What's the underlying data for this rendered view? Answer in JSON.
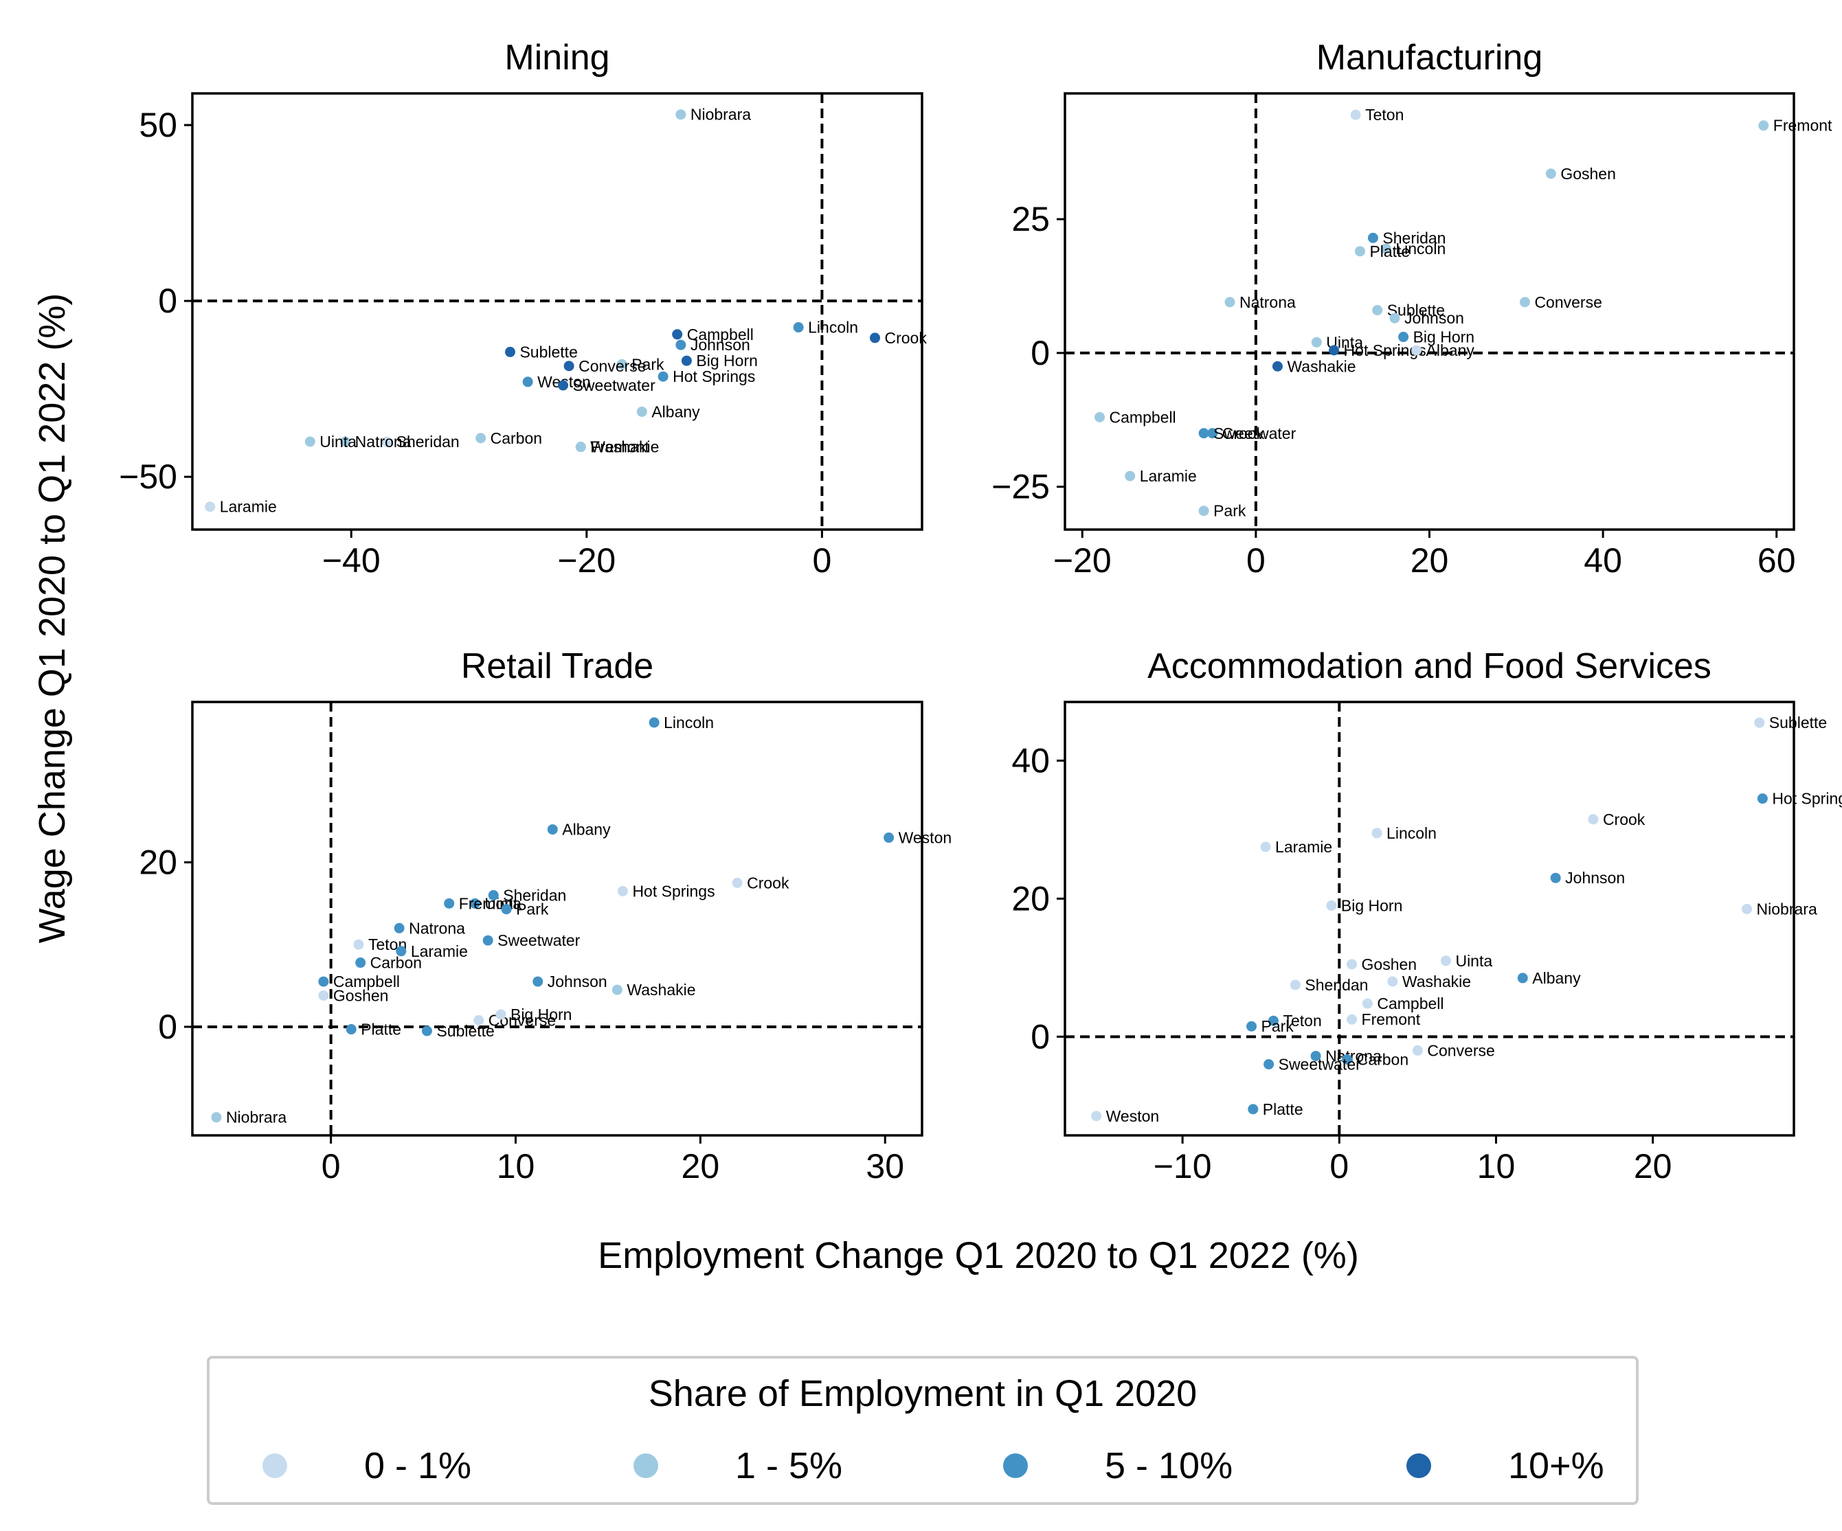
{
  "figure": {
    "ylabel": "Wage Change Q1 2020 to Q1 2022 (%)",
    "xlabel": "Employment Change Q1 2020 to Q1 2022 (%)"
  },
  "legend": {
    "title": "Share of Employment in Q1 2020",
    "placement": "bottom-center",
    "entries": [
      {
        "label": "0 - 1%",
        "color": "#c6dbef"
      },
      {
        "label": "1 - 5%",
        "color": "#9ecae1"
      },
      {
        "label": "5 - 10%",
        "color": "#4292c6"
      },
      {
        "label": "10+%",
        "color": "#1f63a8"
      }
    ]
  },
  "chart_data": [
    {
      "type": "scatter",
      "title": "Mining",
      "xlim": [
        -53.5,
        8.5
      ],
      "ylim": [
        -65,
        59
      ],
      "xticks": [
        -40,
        -20,
        0
      ],
      "yticks": [
        50,
        0,
        -50
      ],
      "reference_lines": {
        "x": 0,
        "y": 0
      },
      "points": [
        {
          "label": "Niobrara",
          "x": -12,
          "y": 53,
          "share": "1 - 5%"
        },
        {
          "label": "Lincoln",
          "x": -2,
          "y": -7.5,
          "share": "5 - 10%"
        },
        {
          "label": "Crook",
          "x": 4.5,
          "y": -10.5,
          "share": "10+%"
        },
        {
          "label": "Campbell",
          "x": -12.3,
          "y": -9.5,
          "share": "10+%"
        },
        {
          "label": "Johnson",
          "x": -12,
          "y": -12.5,
          "share": "5 - 10%"
        },
        {
          "label": "Big Horn",
          "x": -11.5,
          "y": -17,
          "share": "10+%"
        },
        {
          "label": "Hot Springs",
          "x": -13.5,
          "y": -21.5,
          "share": "5 - 10%"
        },
        {
          "label": "Park",
          "x": -17,
          "y": -18,
          "share": "1 - 5%"
        },
        {
          "label": "Converse",
          "x": -21.5,
          "y": -18.5,
          "share": "10+%"
        },
        {
          "label": "Sublette",
          "x": -26.5,
          "y": -14.5,
          "share": "10+%"
        },
        {
          "label": "Weston",
          "x": -25,
          "y": -23,
          "share": "5 - 10%"
        },
        {
          "label": "Sweetwater",
          "x": -22,
          "y": -24,
          "share": "10+%"
        },
        {
          "label": "Albany",
          "x": -15.3,
          "y": -31.5,
          "share": "1 - 5%"
        },
        {
          "label": "Washakie",
          "x": -20.5,
          "y": -41.5,
          "share": "1 - 5%"
        },
        {
          "label": "Fremont",
          "x": -20.5,
          "y": -41.5,
          "share": "1 - 5%"
        },
        {
          "label": "Carbon",
          "x": -29,
          "y": -39,
          "share": "1 - 5%"
        },
        {
          "label": "Sheridan",
          "x": -37,
          "y": -40,
          "share": "0 - 1%"
        },
        {
          "label": "Natrona",
          "x": -40.5,
          "y": -40,
          "share": "1 - 5%"
        },
        {
          "label": "Uinta",
          "x": -43.5,
          "y": -40,
          "share": "1 - 5%"
        },
        {
          "label": "Laramie",
          "x": -52,
          "y": -58.5,
          "share": "0 - 1%"
        }
      ]
    },
    {
      "type": "scatter",
      "title": "Manufacturing",
      "xlim": [
        -22,
        62
      ],
      "ylim": [
        -33,
        48.5
      ],
      "xticks": [
        -20,
        0,
        20,
        40,
        60
      ],
      "yticks": [
        25,
        0,
        -25
      ],
      "reference_lines": {
        "x": 0,
        "y": 0
      },
      "points": [
        {
          "label": "Teton",
          "x": 11.5,
          "y": 44.5,
          "share": "0 - 1%"
        },
        {
          "label": "Fremont",
          "x": 58.5,
          "y": 42.5,
          "share": "1 - 5%"
        },
        {
          "label": "Goshen",
          "x": 34,
          "y": 33.5,
          "share": "1 - 5%"
        },
        {
          "label": "Sheridan",
          "x": 13.5,
          "y": 21.5,
          "share": "5 - 10%"
        },
        {
          "label": "Lincoln",
          "x": 15,
          "y": 19.5,
          "share": "1 - 5%"
        },
        {
          "label": "Platte",
          "x": 12,
          "y": 19,
          "share": "1 - 5%"
        },
        {
          "label": "Converse",
          "x": 31,
          "y": 9.5,
          "share": "1 - 5%"
        },
        {
          "label": "Natrona",
          "x": -3,
          "y": 9.5,
          "share": "1 - 5%"
        },
        {
          "label": "Sublette",
          "x": 14,
          "y": 8,
          "share": "1 - 5%"
        },
        {
          "label": "Johnson",
          "x": 16,
          "y": 6.5,
          "share": "1 - 5%"
        },
        {
          "label": "Big Horn",
          "x": 17,
          "y": 3,
          "share": "5 - 10%"
        },
        {
          "label": "Uinta",
          "x": 7,
          "y": 2,
          "share": "1 - 5%"
        },
        {
          "label": "Hot Springs",
          "x": 9,
          "y": 0.5,
          "share": "10+%"
        },
        {
          "label": "Albany",
          "x": 18.5,
          "y": 0.5,
          "share": "0 - 1%"
        },
        {
          "label": "Washakie",
          "x": 2.5,
          "y": -2.5,
          "share": "10+%"
        },
        {
          "label": "Campbell",
          "x": -18,
          "y": -12,
          "share": "1 - 5%"
        },
        {
          "label": "Crook",
          "x": -5,
          "y": -15,
          "share": "5 - 10%"
        },
        {
          "label": "Sweetwater",
          "x": -6,
          "y": -15,
          "share": "5 - 10%"
        },
        {
          "label": "Laramie",
          "x": -14.5,
          "y": -23,
          "share": "1 - 5%"
        },
        {
          "label": "Park",
          "x": -6,
          "y": -29.5,
          "share": "1 - 5%"
        }
      ]
    },
    {
      "type": "scatter",
      "title": "Retail Trade",
      "xlim": [
        -7.5,
        32
      ],
      "ylim": [
        -13.2,
        39.5
      ],
      "xticks": [
        0,
        10,
        20,
        30
      ],
      "yticks": [
        20,
        0
      ],
      "reference_lines": {
        "x": 0,
        "y": 0
      },
      "points": [
        {
          "label": "Lincoln",
          "x": 17.5,
          "y": 37,
          "share": "5 - 10%"
        },
        {
          "label": "Weston",
          "x": 30.2,
          "y": 23,
          "share": "5 - 10%"
        },
        {
          "label": "Albany",
          "x": 12,
          "y": 24,
          "share": "5 - 10%"
        },
        {
          "label": "Crook",
          "x": 22,
          "y": 17.5,
          "share": "0 - 1%"
        },
        {
          "label": "Hot Springs",
          "x": 15.8,
          "y": 16.5,
          "share": "0 - 1%"
        },
        {
          "label": "Uinta",
          "x": 7.8,
          "y": 15,
          "share": "5 - 10%"
        },
        {
          "label": "Sheridan",
          "x": 8.8,
          "y": 16,
          "share": "5 - 10%"
        },
        {
          "label": "Fremont",
          "x": 6.4,
          "y": 15,
          "share": "5 - 10%"
        },
        {
          "label": "Park",
          "x": 9.5,
          "y": 14.3,
          "share": "5 - 10%"
        },
        {
          "label": "Natrona",
          "x": 3.7,
          "y": 12,
          "share": "5 - 10%"
        },
        {
          "label": "Sweetwater",
          "x": 8.5,
          "y": 10.5,
          "share": "5 - 10%"
        },
        {
          "label": "Teton",
          "x": 1.5,
          "y": 10,
          "share": "0 - 1%"
        },
        {
          "label": "Laramie",
          "x": 3.8,
          "y": 9.2,
          "share": "5 - 10%"
        },
        {
          "label": "Carbon",
          "x": 1.6,
          "y": 7.8,
          "share": "5 - 10%"
        },
        {
          "label": "Johnson",
          "x": 11.2,
          "y": 5.5,
          "share": "5 - 10%"
        },
        {
          "label": "Washakie",
          "x": 15.5,
          "y": 4.5,
          "share": "1 - 5%"
        },
        {
          "label": "Campbell",
          "x": -0.4,
          "y": 5.5,
          "share": "5 - 10%"
        },
        {
          "label": "Goshen",
          "x": -0.4,
          "y": 3.8,
          "share": "0 - 1%"
        },
        {
          "label": "Converse",
          "x": 8,
          "y": 0.8,
          "share": "0 - 1%"
        },
        {
          "label": "Big Horn",
          "x": 9.2,
          "y": 1.5,
          "share": "0 - 1%"
        },
        {
          "label": "Sublette",
          "x": 5.2,
          "y": -0.5,
          "share": "5 - 10%"
        },
        {
          "label": "Platte",
          "x": 1.1,
          "y": -0.3,
          "share": "5 - 10%"
        },
        {
          "label": "Niobrara",
          "x": -6.2,
          "y": -11,
          "share": "1 - 5%"
        }
      ]
    },
    {
      "type": "scatter",
      "title": "Accommodation and Food Services",
      "xlim": [
        -17.5,
        29
      ],
      "ylim": [
        -14.3,
        48.5
      ],
      "xticks": [
        -10,
        0,
        10,
        20
      ],
      "yticks": [
        40,
        20,
        0
      ],
      "reference_lines": {
        "x": 0,
        "y": 0
      },
      "points": [
        {
          "label": "Sublette",
          "x": 26.8,
          "y": 45.5,
          "share": "0 - 1%"
        },
        {
          "label": "Hot Springs",
          "x": 27,
          "y": 34.5,
          "share": "5 - 10%"
        },
        {
          "label": "Crook",
          "x": 16.2,
          "y": 31.5,
          "share": "0 - 1%"
        },
        {
          "label": "Lincoln",
          "x": 2.4,
          "y": 29.5,
          "share": "0 - 1%"
        },
        {
          "label": "Laramie",
          "x": -4.7,
          "y": 27.5,
          "share": "0 - 1%"
        },
        {
          "label": "Johnson",
          "x": 13.8,
          "y": 23,
          "share": "5 - 10%"
        },
        {
          "label": "Big Horn",
          "x": -0.5,
          "y": 19,
          "share": "0 - 1%"
        },
        {
          "label": "Niobrara",
          "x": 26,
          "y": 18.5,
          "share": "0 - 1%"
        },
        {
          "label": "Goshen",
          "x": 0.8,
          "y": 10.5,
          "share": "0 - 1%"
        },
        {
          "label": "Uinta",
          "x": 6.8,
          "y": 11,
          "share": "0 - 1%"
        },
        {
          "label": "Albany",
          "x": 11.7,
          "y": 8.5,
          "share": "5 - 10%"
        },
        {
          "label": "Sheridan",
          "x": -2.8,
          "y": 7.5,
          "share": "0 - 1%"
        },
        {
          "label": "Washakie",
          "x": 3.4,
          "y": 8,
          "share": "0 - 1%"
        },
        {
          "label": "Campbell",
          "x": 1.8,
          "y": 4.8,
          "share": "0 - 1%"
        },
        {
          "label": "Teton",
          "x": -4.2,
          "y": 2.3,
          "share": "5 - 10%"
        },
        {
          "label": "Fremont",
          "x": 0.8,
          "y": 2.5,
          "share": "0 - 1%"
        },
        {
          "label": "Park",
          "x": -5.6,
          "y": 1.5,
          "share": "5 - 10%"
        },
        {
          "label": "Converse",
          "x": 5,
          "y": -2,
          "share": "0 - 1%"
        },
        {
          "label": "Natrona",
          "x": -1.5,
          "y": -2.8,
          "share": "5 - 10%"
        },
        {
          "label": "Carbon",
          "x": 0.5,
          "y": -3.3,
          "share": "5 - 10%"
        },
        {
          "label": "Sweetwater",
          "x": -4.5,
          "y": -4,
          "share": "5 - 10%"
        },
        {
          "label": "Weston",
          "x": -15.5,
          "y": -11.5,
          "share": "0 - 1%"
        },
        {
          "label": "Platte",
          "x": -5.5,
          "y": -10.5,
          "share": "5 - 10%"
        }
      ]
    }
  ]
}
